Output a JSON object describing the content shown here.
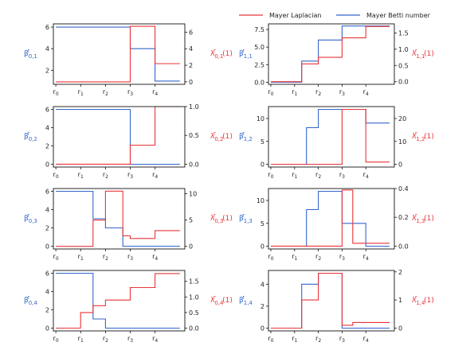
{
  "colors": {
    "betti": "#3366cc",
    "laplacian": "#e8343a",
    "axis": "#111111"
  },
  "legend": [
    {
      "label": "Mayer Laplacian",
      "color": "#e8343a"
    },
    {
      "label": "Mayer Betti number",
      "color": "#3366cc"
    }
  ],
  "x_tick_labels": [
    "r0",
    "r1",
    "r2",
    "r3",
    "r4"
  ],
  "chart_data": [
    {
      "type": "line",
      "step": true,
      "panel": "0,1",
      "ylabel_left": "β^r_{0,1}",
      "ylabel_right": "λ^r_{0,1}(1)",
      "x_ticks": [
        0,
        1,
        2,
        3,
        4
      ],
      "xlim": [
        -0.1,
        5.2
      ],
      "ylim_left": [
        0.7,
        6.3
      ],
      "yticks_left": [
        2,
        4,
        6
      ],
      "ylim_right": [
        -0.3,
        7.0
      ],
      "yticks_right": [
        0,
        2,
        4,
        6
      ],
      "series": [
        {
          "axis": "left",
          "color": "#3366cc",
          "x": [
            0,
            1,
            2,
            3,
            4,
            5
          ],
          "y": [
            6,
            6,
            6,
            4,
            1,
            1
          ]
        },
        {
          "axis": "right",
          "color": "#e8343a",
          "x": [
            0,
            1,
            2,
            3,
            4,
            5
          ],
          "y": [
            0,
            0,
            0,
            6.7,
            2.2,
            2.2
          ]
        }
      ]
    },
    {
      "type": "line",
      "step": true,
      "panel": "1,1",
      "ylabel_left": "β^r_{1,1}",
      "ylabel_right": "λ^r_{1,1}(1)",
      "x_ticks": [
        0,
        1,
        2,
        3,
        4
      ],
      "xlim": [
        -0.1,
        5.2
      ],
      "ylim_left": [
        -0.3,
        8.3
      ],
      "yticks_left": [
        0.0,
        2.5,
        5.0,
        7.5
      ],
      "ylim_right": [
        -0.08,
        1.78
      ],
      "yticks_right": [
        0.0,
        0.5,
        1.0,
        1.5
      ],
      "series": [
        {
          "axis": "left",
          "color": "#3366cc",
          "x": [
            0,
            1,
            1.3,
            2,
            3,
            4,
            5
          ],
          "y": [
            0,
            0,
            3,
            6,
            8,
            8,
            8
          ]
        },
        {
          "axis": "right",
          "color": "#e8343a",
          "x": [
            0,
            1,
            1.3,
            2,
            3,
            4,
            5
          ],
          "y": [
            0,
            0,
            0.55,
            0.75,
            1.35,
            1.7,
            1.7
          ]
        }
      ]
    },
    {
      "type": "line",
      "step": true,
      "panel": "0,2",
      "ylabel_left": "β^r_{0,2}",
      "ylabel_right": "λ^r_{0,2}(1)",
      "x_ticks": [
        0,
        1,
        2,
        3,
        4
      ],
      "xlim": [
        -0.1,
        5.2
      ],
      "ylim_left": [
        -0.3,
        6.3
      ],
      "yticks_left": [
        0,
        2,
        4,
        6
      ],
      "ylim_right": [
        -0.05,
        1.0
      ],
      "yticks_right": [
        0.0,
        0.5,
        1.0
      ],
      "series": [
        {
          "axis": "left",
          "color": "#3366cc",
          "x": [
            0,
            1,
            2,
            3,
            4,
            5
          ],
          "y": [
            6,
            6,
            6,
            0,
            0,
            0
          ]
        },
        {
          "axis": "right",
          "color": "#e8343a",
          "x": [
            0,
            1,
            2,
            3,
            4,
            5
          ],
          "y": [
            0,
            0,
            0,
            0.33,
            1.0,
            1.0
          ]
        }
      ]
    },
    {
      "type": "line",
      "step": true,
      "panel": "1,2",
      "ylabel_left": "β^r_{1,2}",
      "ylabel_right": "λ^r_{1,2}(1)",
      "x_ticks": [
        0,
        1,
        2,
        3,
        4
      ],
      "xlim": [
        -0.1,
        5.2
      ],
      "ylim_left": [
        -0.6,
        12.6
      ],
      "yticks_left": [
        0,
        5,
        10
      ],
      "ylim_right": [
        -1.2,
        25.2
      ],
      "yticks_right": [
        0,
        10,
        20
      ],
      "series": [
        {
          "axis": "left",
          "color": "#3366cc",
          "x": [
            0,
            1,
            1.5,
            2,
            3,
            4,
            5
          ],
          "y": [
            0,
            0,
            8,
            12,
            12,
            9,
            9
          ]
        },
        {
          "axis": "right",
          "color": "#e8343a",
          "x": [
            0,
            1,
            1.5,
            2,
            3,
            4,
            5
          ],
          "y": [
            0,
            0,
            0,
            0,
            24,
            1,
            1
          ]
        }
      ]
    },
    {
      "type": "line",
      "step": true,
      "panel": "0,3",
      "ylabel_left": "β^r_{0,3}",
      "ylabel_right": "λ^r_{0,3}(1)",
      "x_ticks": [
        0,
        1,
        2,
        3,
        4
      ],
      "xlim": [
        -0.1,
        5.2
      ],
      "ylim_left": [
        -0.3,
        6.3
      ],
      "yticks_left": [
        0,
        2,
        4,
        6
      ],
      "ylim_right": [
        -0.5,
        11.0
      ],
      "yticks_right": [
        0,
        5,
        10
      ],
      "series": [
        {
          "axis": "left",
          "color": "#3366cc",
          "x": [
            0,
            1,
            1.5,
            2,
            2.7,
            3,
            4,
            5
          ],
          "y": [
            6,
            6,
            3,
            2,
            0,
            0,
            0,
            0
          ]
        },
        {
          "axis": "right",
          "color": "#e8343a",
          "x": [
            0,
            1,
            1.5,
            2,
            2.7,
            3,
            4,
            5
          ],
          "y": [
            0,
            0,
            5,
            10.5,
            2,
            1.5,
            3,
            3
          ]
        }
      ]
    },
    {
      "type": "line",
      "step": true,
      "panel": "1,3",
      "ylabel_left": "β^r_{1,3}",
      "ylabel_right": "λ^r_{1,3}(1)",
      "x_ticks": [
        0,
        1,
        2,
        3,
        4
      ],
      "xlim": [
        -0.1,
        5.2
      ],
      "ylim_left": [
        -0.6,
        12.6
      ],
      "yticks_left": [
        0,
        5,
        10
      ],
      "ylim_right": [
        -0.02,
        0.4
      ],
      "yticks_right": [
        0.0,
        0.2,
        0.4
      ],
      "series": [
        {
          "axis": "left",
          "color": "#3366cc",
          "x": [
            0,
            1,
            1.5,
            2,
            3,
            4,
            5
          ],
          "y": [
            0,
            0,
            8,
            12,
            5,
            0,
            0
          ]
        },
        {
          "axis": "right",
          "color": "#e8343a",
          "x": [
            0,
            1,
            1.5,
            2,
            3,
            3.45,
            4,
            5
          ],
          "y": [
            0,
            0,
            0,
            0,
            0.39,
            0.02,
            0.02,
            0.02
          ]
        }
      ]
    },
    {
      "type": "line",
      "step": true,
      "panel": "0,4",
      "ylabel_left": "β^r_{0,4}",
      "ylabel_right": "λ^r_{0,4}(1)",
      "x_ticks": [
        0,
        1,
        2,
        3,
        4
      ],
      "xlim": [
        -0.1,
        5.2
      ],
      "ylim_left": [
        -0.3,
        6.3
      ],
      "yticks_left": [
        0,
        2,
        4,
        6
      ],
      "ylim_right": [
        -0.09,
        1.85
      ],
      "yticks_right": [
        0.0,
        0.5,
        1.0,
        1.5
      ],
      "series": [
        {
          "axis": "left",
          "color": "#3366cc",
          "x": [
            0,
            1,
            1.5,
            2,
            3,
            4,
            5
          ],
          "y": [
            6,
            6,
            1,
            0,
            0,
            0,
            0
          ]
        },
        {
          "axis": "right",
          "color": "#e8343a",
          "x": [
            0,
            1,
            1.5,
            2,
            3,
            4,
            5
          ],
          "y": [
            0,
            0.5,
            0.72,
            0.9,
            1.3,
            1.75,
            1.75
          ]
        }
      ]
    },
    {
      "type": "line",
      "step": true,
      "panel": "1,4",
      "ylabel_left": "β^r_{1,4}",
      "ylabel_right": "λ^r_{1,4}(1)",
      "x_ticks": [
        0,
        1,
        2,
        3,
        4
      ],
      "xlim": [
        -0.1,
        5.2
      ],
      "ylim_left": [
        -0.25,
        5.25
      ],
      "yticks_left": [
        0,
        2,
        4
      ],
      "ylim_right": [
        -0.1,
        2.05
      ],
      "yticks_right": [
        0,
        1,
        2
      ],
      "series": [
        {
          "axis": "left",
          "color": "#3366cc",
          "x": [
            0,
            1,
            1.3,
            2,
            3,
            3.45,
            4,
            5
          ],
          "y": [
            0,
            0,
            4,
            5,
            0,
            0,
            0,
            0
          ]
        },
        {
          "axis": "right",
          "color": "#e8343a",
          "x": [
            0,
            1,
            1.3,
            2,
            3,
            3.45,
            4,
            5
          ],
          "y": [
            0,
            0,
            1,
            1.95,
            0.1,
            0.2,
            0.2,
            0.2
          ]
        }
      ]
    }
  ]
}
